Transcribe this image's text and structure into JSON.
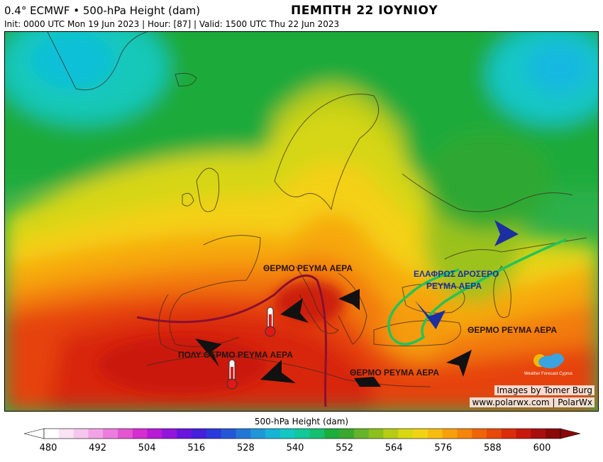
{
  "header": {
    "model_title": "0.4° ECMWF • 500-hPa Height (dam)",
    "init_line": "Init: 0000 UTC Mon 19 Jun 2023 | Hour: [87] | Valid: 1500 UTC Thu 22 Jun 2023",
    "day_title": "ΠΕΜΠΤΗ 22 ΙΟΥΝΙΟΥ"
  },
  "annotations": {
    "warm_central": "ΘΕΡΜΟ ΡΕΥΜΑ ΑΕΡΑ",
    "very_warm_west": "ΠΟΛΥ ΘΕΡΜΟ ΡΕΥΜΑ ΑΕΡΑ",
    "slightly_cooler_line1": "ΕΛΑΦΡΩΣ ΔΡΟΣΕΡΟ",
    "slightly_cooler_line2": "ΡΕΥΜΑ ΑΕΡΑ",
    "warm_east": "ΘΕΡΜΟ ΡΕΥΜΑ ΑΕΡΑ",
    "warm_south": "ΘΕΡΜΟ ΡΕΥΜΑ ΑΕΡΑ"
  },
  "credits": {
    "logo_text": "Weather Forecast Cyprus",
    "images_by": "Images by Tomer Burg",
    "website": "www.polarwx.com | PolarWx"
  },
  "colorbar": {
    "title": "500-hPa Height (dam)",
    "ticks": [
      "480",
      "492",
      "504",
      "516",
      "528",
      "540",
      "552",
      "564",
      "576",
      "588",
      "600"
    ],
    "colors": [
      "#ffffff",
      "#fbe3f6",
      "#f7c6ee",
      "#f2a3e6",
      "#ec7ddc",
      "#e455d2",
      "#d62ed0",
      "#b81ad6",
      "#9116dc",
      "#6a14de",
      "#4420dc",
      "#2a3adc",
      "#2456d8",
      "#2277d6",
      "#1e97d8",
      "#17b4d6",
      "#11c8c2",
      "#10c89a",
      "#14c070",
      "#1aae3c",
      "#3aa82c",
      "#66b428",
      "#8cc01c",
      "#b6cc14",
      "#d8d812",
      "#f0d414",
      "#f8bc10",
      "#f8a00c",
      "#f68408",
      "#f06408",
      "#e84808",
      "#dc2c0a",
      "#c8180c",
      "#a80e0e",
      "#8a0808"
    ],
    "colors_note": "",
    "accent": "#1c2fa0"
  }
}
